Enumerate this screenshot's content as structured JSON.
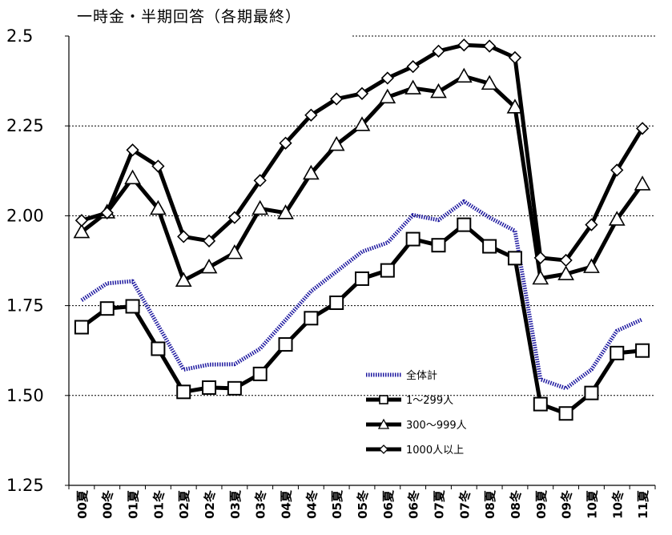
{
  "title": "一時金・半期回答（各期最終）",
  "chart_data": {
    "type": "line",
    "title": "一時金・半期回答（各期最終）",
    "xlabel": "",
    "ylabel": "",
    "ylim": [
      1.25,
      2.5
    ],
    "yticks": [
      "1.25",
      "1.50",
      "1.75",
      "2.00",
      "2.25",
      "2.5"
    ],
    "categories": [
      "00夏",
      "00冬",
      "01夏",
      "01冬",
      "02夏",
      "02冬",
      "03夏",
      "03冬",
      "04夏",
      "04冬",
      "05夏",
      "05冬",
      "06夏",
      "06冬",
      "07夏",
      "07冬",
      "08夏",
      "08冬",
      "09夏",
      "09冬",
      "10夏",
      "10冬",
      "11夏"
    ],
    "grid": "horizontal-dashed",
    "legend_position": "bottom-center",
    "series": [
      {
        "name": "全体計",
        "color": "#1f1aa0",
        "style": "dotted",
        "marker": "none",
        "values": [
          1.765,
          1.812,
          1.818,
          1.695,
          1.572,
          1.586,
          1.587,
          1.63,
          1.71,
          1.79,
          1.845,
          1.9,
          1.925,
          2.002,
          1.988,
          2.04,
          1.995,
          1.958,
          1.545,
          1.52,
          1.572,
          1.68,
          1.712
        ]
      },
      {
        "name": "1～299人",
        "color": "#000000",
        "style": "solid",
        "marker": "square",
        "values": [
          1.69,
          1.742,
          1.748,
          1.63,
          1.51,
          1.522,
          1.52,
          1.56,
          1.642,
          1.715,
          1.758,
          1.825,
          1.848,
          1.935,
          1.918,
          1.975,
          1.915,
          1.882,
          1.476,
          1.45,
          1.507,
          1.618,
          1.625
        ]
      },
      {
        "name": "300～999人",
        "color": "#000000",
        "style": "solid",
        "marker": "triangle",
        "values": [
          1.955,
          2.01,
          2.105,
          2.02,
          1.82,
          1.857,
          1.897,
          2.02,
          2.008,
          2.118,
          2.198,
          2.253,
          2.33,
          2.355,
          2.345,
          2.388,
          2.368,
          2.302,
          1.826,
          1.838,
          1.858,
          1.99,
          2.088
        ]
      },
      {
        "name": "1000人以上",
        "color": "#000000",
        "style": "solid",
        "marker": "diamond",
        "values": [
          1.987,
          2.008,
          2.183,
          2.138,
          1.942,
          1.93,
          1.995,
          2.098,
          2.202,
          2.28,
          2.325,
          2.34,
          2.383,
          2.415,
          2.458,
          2.475,
          2.472,
          2.44,
          1.883,
          1.876,
          1.975,
          2.127,
          2.243
        ]
      }
    ]
  }
}
